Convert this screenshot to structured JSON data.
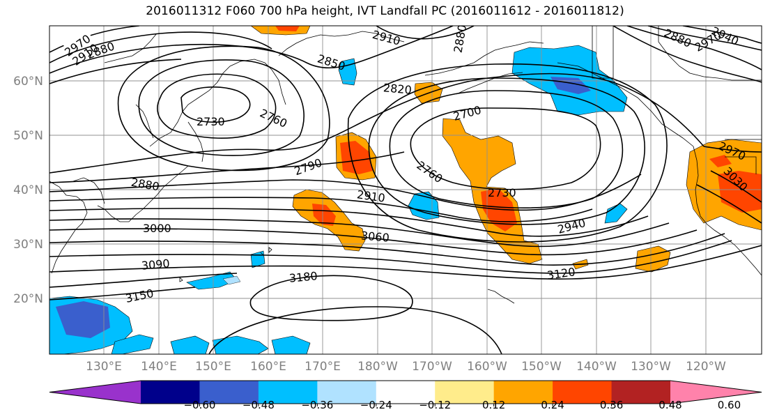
{
  "title": "2016011312 F060 700 hPa height, IVT Landfall PC (2016011612 - 2016011812)",
  "lat_labels": [
    "60°N",
    "50°N",
    "40°N",
    "30°N",
    "20°N"
  ],
  "lon_labels": [
    "130°E",
    "140°E",
    "150°E",
    "160°E",
    "170°E",
    "180°W",
    "170°W",
    "160°W",
    "150°W",
    "140°W",
    "130°W",
    "120°W"
  ],
  "contour_labels": [
    "2970",
    "2910",
    "2880",
    "2910",
    "2850",
    "2880",
    "2820",
    "2700",
    "2730",
    "2760",
    "2790",
    "2880",
    "2910",
    "2760",
    "2730",
    "3000",
    "3060",
    "2940",
    "3090",
    "3120",
    "3180",
    "3150",
    "2880",
    "2970",
    "2940",
    "2970",
    "3030"
  ],
  "colorbar": {
    "ticks": [
      "−0.60",
      "−0.48",
      "−0.36",
      "−0.24",
      "−0.12",
      "0.12",
      "0.24",
      "0.36",
      "0.48",
      "0.60"
    ],
    "colors": [
      "#9932cc",
      "#00008b",
      "#3a5fcd",
      "#00bfff",
      "#b0e2ff",
      "#ffffff",
      "#ffec8b",
      "#ffa500",
      "#ff4500",
      "#b22222",
      "#ff82ab"
    ]
  },
  "fill_colors": {
    "deep_blue": "#3a5fcd",
    "blue": "#00bfff",
    "light_blue": "#b0e2ff",
    "light_yellow": "#ffec8b",
    "orange": "#ffa500",
    "red_orange": "#ff4500"
  }
}
